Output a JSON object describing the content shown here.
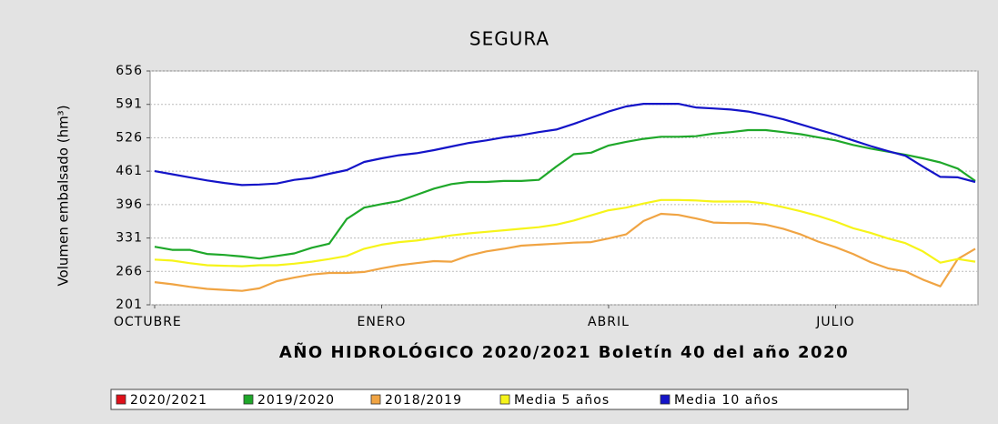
{
  "chart_data": {
    "type": "line",
    "title": "SEGURA",
    "xlabel": "AÑO HIDROLÓGICO 2020/2021 Boletín 40 del año 2020",
    "ylabel": "Volumen embalsado (hm³)",
    "categories": [
      "OCTUBRE",
      null,
      null,
      null,
      null,
      null,
      null,
      null,
      null,
      null,
      null,
      null,
      null,
      "ENERO",
      null,
      null,
      null,
      null,
      null,
      null,
      null,
      null,
      null,
      null,
      null,
      null,
      "ABRIL",
      null,
      null,
      null,
      null,
      null,
      null,
      null,
      null,
      null,
      null,
      null,
      null,
      "JULIO",
      null,
      null,
      null,
      null,
      null,
      null,
      null,
      null
    ],
    "ylim": [
      201,
      656
    ],
    "yticks": [
      201,
      266,
      331,
      396,
      461,
      526,
      591,
      656
    ],
    "grid": true,
    "legend": "bottom",
    "series": [
      {
        "name": "2020/2021",
        "color": "#e0101a",
        "values": [
          null,
          null,
          null,
          null,
          null,
          null,
          null,
          null,
          null,
          null,
          null,
          null,
          null,
          null,
          null,
          null,
          null,
          null,
          null,
          null,
          null,
          null,
          null,
          null,
          null,
          null,
          null,
          null,
          null,
          null,
          null,
          null,
          null,
          null,
          null,
          null,
          null,
          null,
          null,
          null,
          null,
          null,
          null,
          null,
          null,
          null,
          null,
          null
        ]
      },
      {
        "name": "2019/2020",
        "color": "#1fa82a",
        "values": [
          314,
          308,
          308,
          300,
          298,
          295,
          291,
          296,
          301,
          312,
          320,
          368,
          390,
          397,
          403,
          415,
          427,
          436,
          440,
          440,
          442,
          442,
          444,
          470,
          494,
          497,
          511,
          518,
          524,
          528,
          528,
          529,
          534,
          537,
          541,
          541,
          537,
          533,
          527,
          521,
          512,
          505,
          499,
          493,
          486,
          478,
          466,
          442
        ]
      },
      {
        "name": "2018/2019",
        "color": "#f0a443",
        "values": [
          245,
          241,
          236,
          232,
          230,
          228,
          233,
          247,
          254,
          260,
          263,
          263,
          265,
          272,
          278,
          282,
          286,
          285,
          297,
          305,
          310,
          316,
          318,
          320,
          322,
          323,
          330,
          338,
          364,
          378,
          376,
          369,
          361,
          360,
          360,
          357,
          349,
          338,
          324,
          313,
          300,
          284,
          272,
          266,
          250,
          237,
          290,
          310
        ]
      },
      {
        "name": "Media 5 años",
        "color": "#f6f41a",
        "values": [
          289,
          287,
          282,
          278,
          277,
          276,
          278,
          278,
          281,
          285,
          290,
          296,
          310,
          318,
          323,
          326,
          331,
          336,
          340,
          343,
          346,
          349,
          352,
          357,
          365,
          375,
          385,
          390,
          398,
          405,
          405,
          404,
          402,
          402,
          402,
          398,
          391,
          383,
          374,
          363,
          350,
          341,
          330,
          321,
          305,
          283,
          290,
          285
        ]
      },
      {
        "name": "Media 10 años",
        "color": "#1414c8",
        "values": [
          461,
          455,
          449,
          443,
          438,
          434,
          435,
          437,
          444,
          448,
          456,
          463,
          479,
          486,
          492,
          496,
          502,
          509,
          516,
          521,
          527,
          531,
          537,
          542,
          553,
          565,
          577,
          587,
          592,
          592,
          592,
          585,
          583,
          581,
          577,
          570,
          562,
          552,
          542,
          532,
          521,
          510,
          500,
          491,
          470,
          450,
          449,
          440
        ]
      }
    ]
  }
}
